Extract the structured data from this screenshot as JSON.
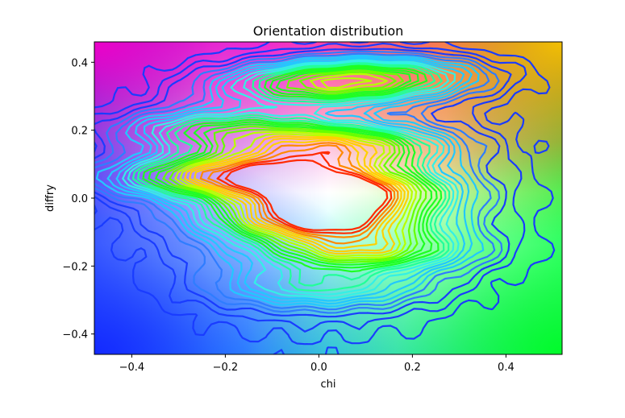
{
  "chart_data": {
    "type": "contour",
    "title": "Orientation distribution",
    "xlabel": "chi",
    "ylabel": "diffry",
    "xlim": [
      -0.48,
      0.52
    ],
    "ylim": [
      -0.46,
      0.46
    ],
    "xticks": [
      -0.4,
      -0.2,
      0.0,
      0.2,
      0.4
    ],
    "xtick_labels": [
      "−0.4",
      "−0.2",
      "0.0",
      "0.2",
      "0.4"
    ],
    "yticks": [
      -0.4,
      -0.2,
      0.0,
      0.2,
      0.4
    ],
    "ytick_labels": [
      "−0.4",
      "−0.2",
      "0.0",
      "0.2",
      "0.4"
    ],
    "grid": false,
    "colormap": "hsv",
    "background": "hsv color-mapped image",
    "peaks": [
      {
        "x": 0.05,
        "y": 0.15,
        "level": "high"
      },
      {
        "x": 0.05,
        "y": 0.02,
        "level": "peak"
      },
      {
        "x": 0.0,
        "y": -0.06,
        "level": "peak"
      },
      {
        "x": 0.1,
        "y": -0.15,
        "level": "high"
      },
      {
        "x": -0.27,
        "y": 0.06,
        "level": "medium"
      },
      {
        "x": -0.1,
        "y": 0.08,
        "level": "medium"
      },
      {
        "x": 0.15,
        "y": 0.36,
        "level": "medium"
      },
      {
        "x": -0.02,
        "y": 0.33,
        "level": "medium"
      },
      {
        "x": -0.22,
        "y": 0.2,
        "level": "medium"
      },
      {
        "x": 0.0,
        "y": -0.26,
        "level": "low"
      }
    ],
    "contour_colors": [
      "#1a3cff",
      "#2f7dff",
      "#22c8ff",
      "#33f0e6",
      "#22ff99",
      "#1eff22",
      "#66ff00",
      "#b8ff00",
      "#ffd000",
      "#ff8a00",
      "#ff2b00"
    ]
  }
}
